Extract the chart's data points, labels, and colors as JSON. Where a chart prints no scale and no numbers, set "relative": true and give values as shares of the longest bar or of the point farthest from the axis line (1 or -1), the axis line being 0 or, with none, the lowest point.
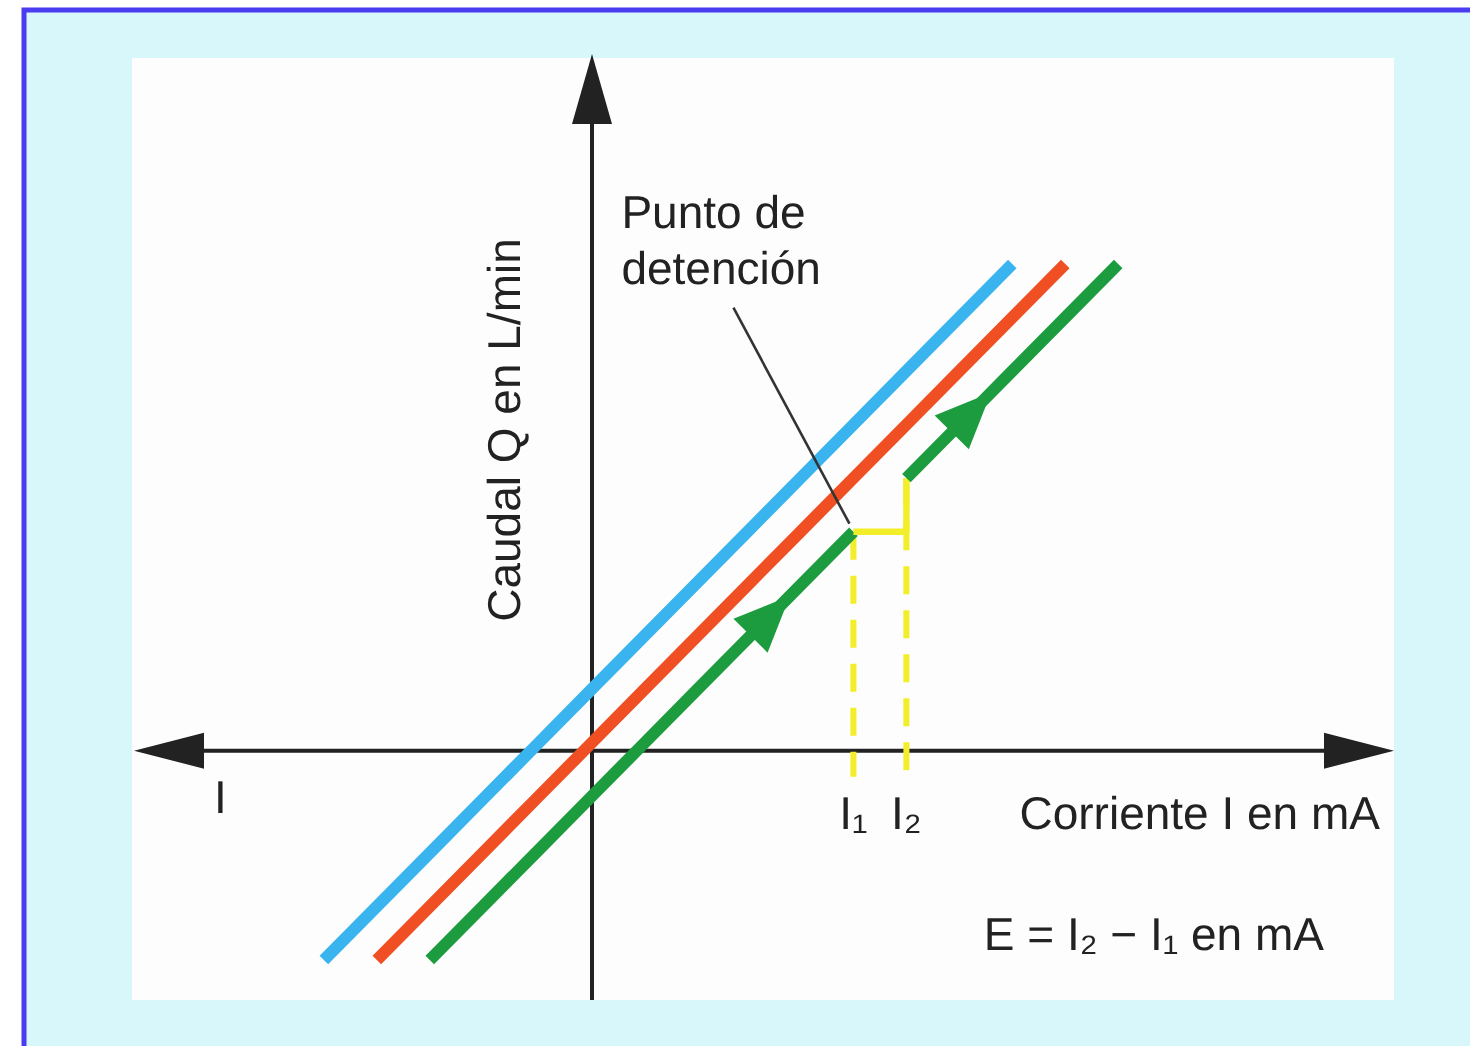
{
  "chart_data": {
    "type": "line",
    "relative": true,
    "xlabel": "Corriente I en mA",
    "ylabel": "Caudal Q en L/min",
    "categories": [
      null,
      null,
      null,
      null,
      null,
      null,
      null,
      null,
      null,
      null,
      null,
      null,
      null,
      "I₁",
      "I₂",
      null,
      null,
      null,
      null,
      null,
      null,
      null,
      null,
      null
    ],
    "series": [
      {
        "color": "#3ab4ef",
        "values": [
          null,
          null,
          null,
          -0.43,
          -0.32,
          -0.21,
          -0.1,
          0.01,
          0.12,
          0.23,
          0.34,
          0.45,
          0.56,
          0.67,
          0.78,
          0.89,
          1.0,
          null,
          null,
          null,
          null,
          null,
          null,
          null
        ]
      },
      {
        "color": "#ef4f23",
        "values": [
          null,
          null,
          null,
          null,
          -0.43,
          -0.32,
          -0.21,
          -0.1,
          0.01,
          0.12,
          0.23,
          0.34,
          0.45,
          0.56,
          0.67,
          0.78,
          0.89,
          1.0,
          null,
          null,
          null,
          null,
          null,
          null
        ]
      },
      {
        "color": "#1d9c3f",
        "values": [
          null,
          null,
          null,
          null,
          null,
          -0.43,
          -0.32,
          -0.21,
          -0.1,
          0.01,
          0.12,
          0.23,
          0.34,
          0.45,
          null,
          null,
          null,
          null,
          null,
          null,
          null,
          null,
          null,
          null
        ]
      },
      {
        "type": "step",
        "color": "#f2ee2a",
        "values": [
          null,
          null,
          null,
          null,
          null,
          null,
          null,
          null,
          null,
          null,
          null,
          null,
          null,
          0.45,
          0.56,
          null,
          null,
          null,
          null,
          null,
          null,
          null,
          null,
          null
        ]
      },
      {
        "color": "#1d9c3f",
        "values": [
          null,
          null,
          null,
          null,
          null,
          null,
          null,
          null,
          null,
          null,
          null,
          null,
          null,
          null,
          0.56,
          0.67,
          0.78,
          0.89,
          1.0,
          null,
          null,
          null,
          null,
          null
        ]
      }
    ],
    "ref_lines": [
      {
        "axis": "x",
        "value": "I₁",
        "color": "#f2ee2a",
        "line_style": "dashed"
      },
      {
        "axis": "x",
        "value": "I₂",
        "color": "#f2ee2a",
        "line_style": "dashed"
      }
    ],
    "annotations": [
      {
        "text": "Punto de detención",
        "x": "I₁",
        "y": 0.45
      },
      "I",
      "E = I₂ − I₁ en mA"
    ]
  }
}
